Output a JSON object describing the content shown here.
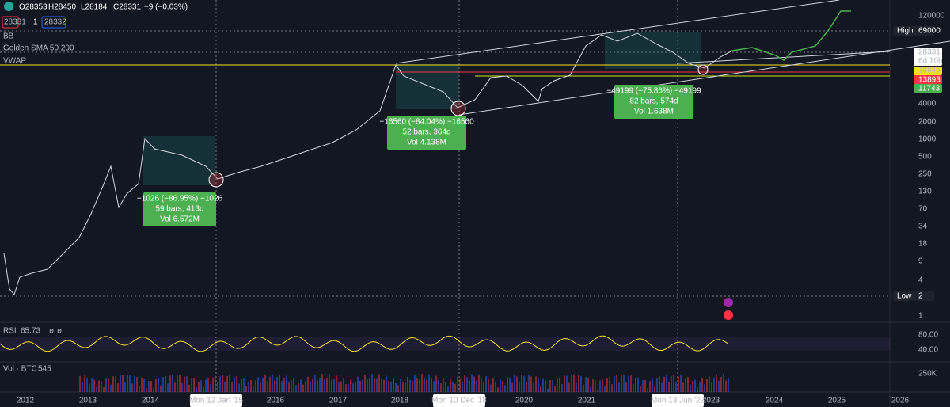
{
  "header": {
    "open": "O28353",
    "high": "H28450",
    "low": "L28184",
    "close": "C28331",
    "change": "−9 (−0.03%)",
    "sell": "28331",
    "qty": "1",
    "buy": "28332"
  },
  "indicators": [
    "BB",
    "Golden SMA 50 200",
    "VWAP"
  ],
  "price_axis": [
    "120000",
    "4000",
    "2000",
    "1000",
    "500",
    "250",
    "130",
    "70",
    "34",
    "18",
    "9",
    "4",
    "1"
  ],
  "price_badges": {
    "high_label": "High",
    "high": "69000",
    "last": "28331",
    "countdown": "6d 10h",
    "yellow": "18646",
    "red": "13893",
    "green": "11743",
    "low_label": "Low",
    "low": "2"
  },
  "time_axis": [
    "2012",
    "2013",
    "2014",
    "2016",
    "2017",
    "2018",
    "2020",
    "2021",
    "2023",
    "2024",
    "2025",
    "2026"
  ],
  "crosshair_dates": [
    "Mon 12 Jan '15",
    "Mon 10 Dec '18",
    "Mon 13 Jun '22"
  ],
  "annotations": [
    [
      "−1026 (−86.95%) −1026",
      "59 bars, 413d",
      "Vol 6.572M"
    ],
    [
      "−16560 (−84.04%) −16560",
      "52 bars, 364d",
      "Vol 4.138M"
    ],
    [
      "−49199 (−75.86%) −49199",
      "82 bars, 574d",
      "Vol 1.638M"
    ]
  ],
  "rsi": {
    "name": "RSI",
    "value": "65.73",
    "p1": "ø",
    "p2": "ø",
    "ticks": [
      "80.00",
      "40.00"
    ]
  },
  "volume": {
    "name": "Vol · BTC",
    "value": "545",
    "tick": "250K"
  }
}
